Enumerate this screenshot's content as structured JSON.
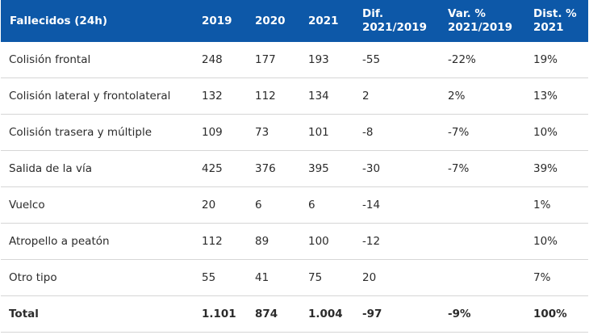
{
  "header": {
    "label": "Fallecidos (24h)",
    "y2019": "2019",
    "y2020": "2020",
    "y2021": "2021",
    "dif_line1": "Dif.",
    "dif_line2": "2021/2019",
    "var_line1": "Var. %",
    "var_line2": "2021/2019",
    "dist_line1": "Dist. %",
    "dist_line2": "2021"
  },
  "rows": [
    {
      "label": "Colisión frontal",
      "y2019": "248",
      "y2020": "177",
      "y2021": "193",
      "dif": "-55",
      "var": "-22%",
      "dist": "19%"
    },
    {
      "label": "Colisión lateral y frontolateral",
      "y2019": "132",
      "y2020": "112",
      "y2021": "134",
      "dif": "2",
      "var": "2%",
      "dist": "13%"
    },
    {
      "label": "Colisión trasera y múltiple",
      "y2019": "109",
      "y2020": "73",
      "y2021": "101",
      "dif": "-8",
      "var": "-7%",
      "dist": "10%"
    },
    {
      "label": "Salida de la vía",
      "y2019": "425",
      "y2020": "376",
      "y2021": "395",
      "dif": "-30",
      "var": "-7%",
      "dist": "39%"
    },
    {
      "label": "Vuelco",
      "y2019": "20",
      "y2020": "6",
      "y2021": "6",
      "dif": "-14",
      "var": "",
      "dist": "1%"
    },
    {
      "label": "Atropello a peatón",
      "y2019": "112",
      "y2020": "89",
      "y2021": "100",
      "dif": "-12",
      "var": "",
      "dist": "10%"
    },
    {
      "label": "Otro tipo",
      "y2019": "55",
      "y2020": "41",
      "y2021": "75",
      "dif": "20",
      "var": "",
      "dist": "7%"
    }
  ],
  "total": {
    "label": "Total",
    "y2019": "1.101",
    "y2020": "874",
    "y2021": "1.004",
    "dif": "-97",
    "var": "-9%",
    "dist": "100%"
  },
  "colors": {
    "header_bg": "#0d58a8",
    "header_text": "#ffffff",
    "row_border": "#d6d6d6"
  }
}
